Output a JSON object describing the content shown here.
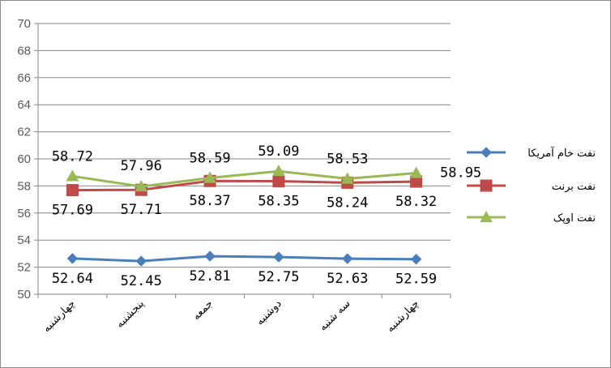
{
  "chart_data": {
    "type": "line",
    "categories": [
      "چهارشنبه",
      "پنجشنبه",
      "جمعه",
      "دوشنبه",
      "سه شنبه",
      "چهارشنبه"
    ],
    "ylim": [
      50,
      70
    ],
    "yticks": [
      50,
      52,
      54,
      56,
      58,
      60,
      62,
      64,
      66,
      68,
      70
    ],
    "grid": true,
    "legend_position": "right",
    "series": [
      {
        "name": "نفت خام آمریکا",
        "color": "#4a7ebb",
        "marker": "diamond",
        "values": [
          52.64,
          52.45,
          52.81,
          52.75,
          52.63,
          52.59
        ],
        "labels": [
          "52.64",
          "52.45",
          "52.81",
          "52.75",
          "52.63",
          "52.59"
        ]
      },
      {
        "name": "نفت برنت",
        "color": "#be4b48",
        "marker": "square",
        "values": [
          57.69,
          57.71,
          58.37,
          58.35,
          58.24,
          58.32
        ],
        "labels": [
          "57.69",
          "57.71",
          "58.37",
          "58.35",
          "58.24",
          "58.32"
        ]
      },
      {
        "name": "نفت اوپک",
        "color": "#98b954",
        "marker": "triangle",
        "values": [
          58.72,
          57.96,
          58.59,
          59.09,
          58.53,
          58.95
        ],
        "labels": [
          "58.72",
          "57.96",
          "58.59",
          "59.09",
          "58.53",
          "58.95"
        ]
      }
    ]
  }
}
